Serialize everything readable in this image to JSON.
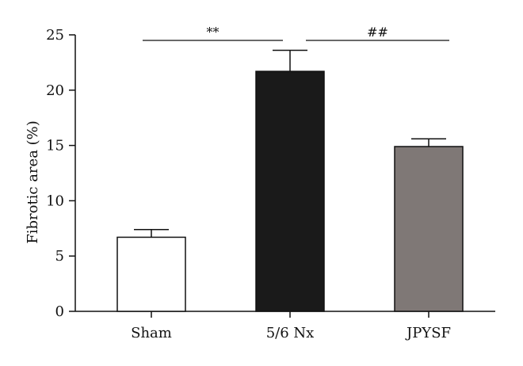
{
  "chart_data": {
    "type": "bar",
    "categories": [
      "Sham",
      "5/6 Nx",
      "JPYSF"
    ],
    "values": [
      6.7,
      21.7,
      14.9
    ],
    "errors": [
      0.7,
      1.9,
      0.7
    ],
    "colors": [
      "#ffffff",
      "#1a1a1a",
      "#7f7876"
    ],
    "ylabel": "Fibrotic area (%)",
    "xlabel": "",
    "ylim": [
      0,
      25
    ],
    "yticks": [
      "0",
      "5",
      "10",
      "15",
      "20",
      "25"
    ],
    "grid": false,
    "significance": [
      {
        "label": "**",
        "from": "Sham",
        "to": "5/6 Nx"
      },
      {
        "label": "##",
        "from": "5/6 Nx",
        "to": "JPYSF"
      }
    ]
  }
}
